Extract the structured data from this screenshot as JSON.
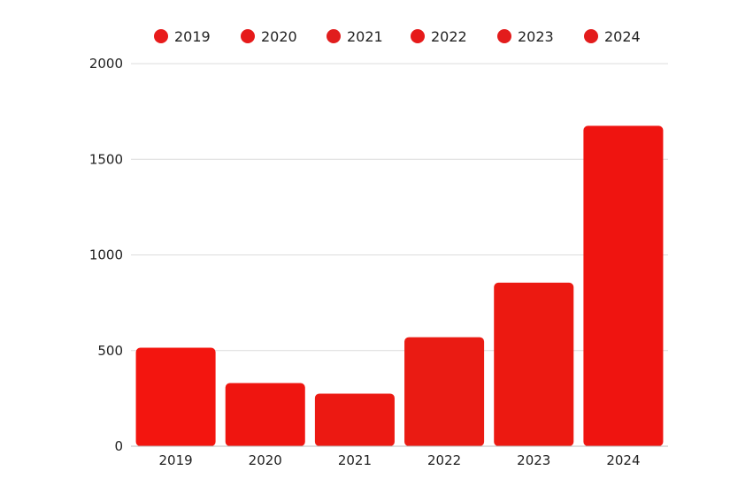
{
  "chart_data": {
    "type": "bar",
    "categories": [
      "2019",
      "2020",
      "2021",
      "2022",
      "2023",
      "2024"
    ],
    "values": [
      515,
      330,
      275,
      570,
      855,
      1675
    ],
    "title": "",
    "xlabel": "",
    "ylabel": "",
    "ylim": [
      0,
      2000
    ],
    "yticks": [
      0,
      500,
      1000,
      1500,
      2000
    ],
    "grid": true,
    "legend": {
      "placement": "top-center",
      "entries": [
        "2019",
        "2020",
        "2021",
        "2022",
        "2023",
        "2024"
      ]
    },
    "colors": {
      "bars": [
        "#f3150f",
        "#ef1510",
        "#ec1912",
        "#ea1b13",
        "#ec1911",
        "#ef1410"
      ],
      "legend": [
        "#e81b1b",
        "#e61a1a",
        "#e11e1e",
        "#e61a1a",
        "#e31c1c",
        "#e31c1c"
      ]
    }
  }
}
